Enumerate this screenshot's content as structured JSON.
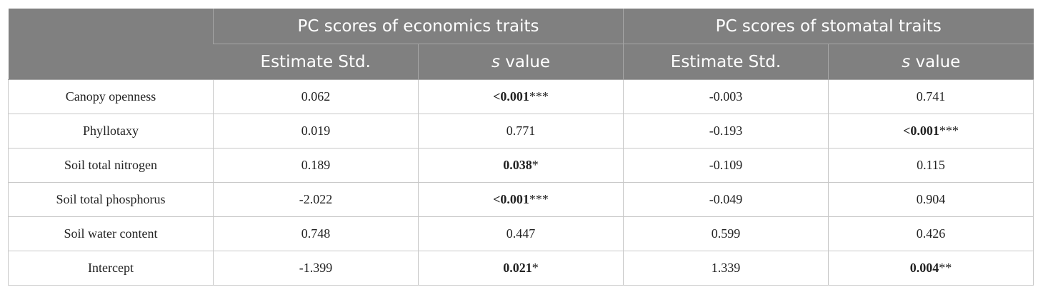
{
  "table": {
    "groups": [
      "PC scores of economics traits",
      "PC scores of stomatal traits"
    ],
    "subheaders": [
      {
        "text": "Estimate Std."
      },
      {
        "symbol": "s",
        "text": "value"
      },
      {
        "text": "Estimate Std."
      },
      {
        "symbol": "s",
        "text": "value"
      }
    ],
    "rows": [
      [
        "Canopy openness",
        "0.062",
        {
          "bold": "<0.001",
          "mark": "***"
        },
        "-0.003",
        "0.741"
      ],
      [
        "Phyllotaxy",
        "0.019",
        "0.771",
        "-0.193",
        {
          "bold": "<0.001",
          "mark": "***"
        }
      ],
      [
        "Soil total nitrogen",
        "0.189",
        {
          "bold": "0.038",
          "mark": "*"
        },
        "-0.109",
        "0.115"
      ],
      [
        "Soil total phosphorus",
        "-2.022",
        {
          "bold": "<0.001",
          "mark": "***"
        },
        "-0.049",
        "0.904"
      ],
      [
        "Soil water content",
        "0.748",
        "0.447",
        "0.599",
        "0.426"
      ],
      [
        "Intercept",
        "-1.399",
        {
          "bold": "0.021",
          "mark": "*"
        },
        "1.339",
        {
          "bold": "0.004",
          "mark": "**"
        }
      ]
    ]
  }
}
